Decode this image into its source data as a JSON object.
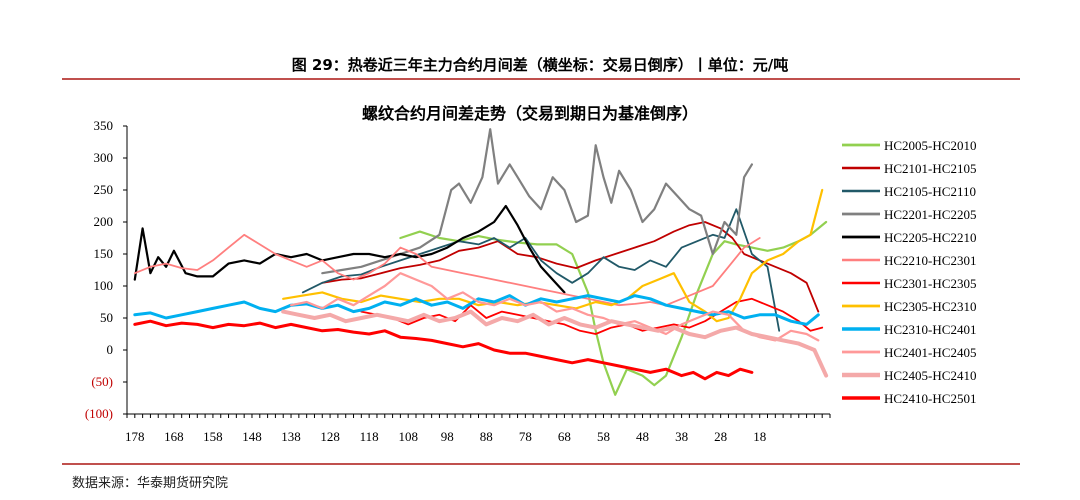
{
  "figure_title": "图 29：热卷近三年主力合约月间差（横坐标：交易日倒序）丨单位：元/吨",
  "source_note": "数据来源：华泰期货研究院",
  "chart_data": {
    "type": "line",
    "title": "螺纹合约月间差走势（交易到期日为基准倒序）",
    "xlabel": "",
    "ylabel": "",
    "ylim": [
      -100,
      350
    ],
    "yticks": [
      350,
      300,
      250,
      200,
      150,
      100,
      50,
      0,
      -50,
      -100
    ],
    "ytick_labels": [
      "350",
      "300",
      "250",
      "200",
      "150",
      "100",
      "50",
      "0",
      "(50)",
      "(100)"
    ],
    "negative_label_color": "#c00000",
    "xlim": [
      180,
      0
    ],
    "xticks": [
      178,
      168,
      158,
      148,
      138,
      128,
      118,
      108,
      98,
      88,
      78,
      68,
      58,
      48,
      38,
      28,
      18
    ],
    "grid": false,
    "legend_position": "right",
    "series": [
      {
        "name": "HC2005-HC2010",
        "color": "#92d050",
        "width": 2.2,
        "x": [
          110,
          105,
          100,
          95,
          90,
          85,
          80,
          75,
          70,
          66,
          62,
          60,
          58,
          55,
          52,
          48,
          45,
          42,
          38,
          34,
          30,
          27,
          24,
          20,
          16,
          12,
          8,
          5,
          1
        ],
        "y": [
          175,
          185,
          175,
          170,
          178,
          172,
          168,
          165,
          165,
          150,
          90,
          30,
          -20,
          -70,
          -30,
          -40,
          -55,
          -40,
          20,
          90,
          150,
          170,
          165,
          160,
          155,
          160,
          170,
          180,
          200
        ]
      },
      {
        "name": "HC2101-HC2105",
        "color": "#c00000",
        "width": 1.8,
        "x": [
          130,
          125,
          120,
          115,
          110,
          105,
          100,
          95,
          90,
          85,
          80,
          75,
          70,
          65,
          60,
          55,
          50,
          45,
          40,
          36,
          32,
          28,
          25,
          22,
          18,
          14,
          10,
          6,
          3
        ],
        "y": [
          105,
          110,
          112,
          120,
          128,
          133,
          140,
          155,
          160,
          170,
          150,
          145,
          135,
          128,
          140,
          150,
          160,
          170,
          185,
          195,
          200,
          190,
          175,
          150,
          140,
          130,
          120,
          105,
          60
        ]
      },
      {
        "name": "HC2105-HC2110",
        "color": "#215968",
        "width": 1.8,
        "x": [
          135,
          130,
          125,
          120,
          115,
          110,
          105,
          100,
          95,
          90,
          86,
          82,
          78,
          74,
          70,
          66,
          62,
          58,
          54,
          50,
          46,
          42,
          38,
          34,
          30,
          27,
          24,
          20,
          16,
          13
        ],
        "y": [
          90,
          105,
          115,
          118,
          130,
          140,
          150,
          160,
          170,
          165,
          175,
          160,
          175,
          140,
          120,
          105,
          120,
          145,
          130,
          125,
          140,
          130,
          160,
          170,
          180,
          175,
          220,
          150,
          130,
          30
        ]
      },
      {
        "name": "HC2201-HC2205",
        "color": "#808080",
        "width": 2.2,
        "x": [
          130,
          125,
          120,
          115,
          110,
          105,
          100,
          97,
          95,
          92,
          89,
          87,
          85,
          82,
          80,
          77,
          74,
          71,
          68,
          65,
          62,
          60,
          58,
          56,
          54,
          51,
          48,
          45,
          42,
          39,
          36,
          33,
          30,
          27,
          24,
          22,
          20
        ],
        "y": [
          120,
          125,
          130,
          140,
          150,
          160,
          180,
          250,
          260,
          230,
          270,
          345,
          260,
          290,
          270,
          240,
          220,
          270,
          250,
          200,
          210,
          320,
          270,
          230,
          280,
          250,
          200,
          220,
          260,
          240,
          220,
          210,
          150,
          200,
          180,
          270,
          290
        ]
      },
      {
        "name": "HC2205-HC2210",
        "color": "#000000",
        "width": 2.2,
        "x": [
          178,
          176,
          174,
          172,
          170,
          168,
          165,
          162,
          158,
          154,
          150,
          146,
          142,
          138,
          134,
          130,
          126,
          122,
          118,
          114,
          110,
          106,
          102,
          98,
          94,
          90,
          86,
          83,
          80,
          77,
          74,
          71,
          68
        ],
        "y": [
          110,
          190,
          120,
          145,
          130,
          155,
          120,
          115,
          115,
          135,
          140,
          135,
          150,
          145,
          150,
          140,
          145,
          150,
          150,
          145,
          150,
          145,
          150,
          160,
          175,
          185,
          200,
          225,
          195,
          160,
          130,
          110,
          90
        ]
      },
      {
        "name": "HC2210-HC2301",
        "color": "#ff7f7f",
        "width": 1.8,
        "x": [
          178,
          174,
          170,
          166,
          162,
          158,
          154,
          150,
          146,
          142,
          138,
          134,
          130,
          126,
          122,
          118,
          114,
          110,
          106,
          102,
          98,
          94,
          90,
          86,
          82,
          78,
          74,
          70,
          66,
          62,
          58,
          54,
          50,
          46,
          42,
          38,
          34,
          30,
          26,
          22,
          18
        ],
        "y": [
          120,
          130,
          135,
          128,
          125,
          140,
          160,
          180,
          165,
          150,
          140,
          130,
          140,
          120,
          110,
          120,
          135,
          160,
          150,
          130,
          125,
          120,
          115,
          110,
          105,
          100,
          95,
          90,
          85,
          80,
          75,
          70,
          72,
          75,
          70,
          80,
          90,
          100,
          130,
          160,
          175
        ]
      },
      {
        "name": "HC2301-HC2305",
        "color": "#ff0000",
        "width": 1.8,
        "x": [
          120,
          116,
          112,
          108,
          104,
          100,
          96,
          92,
          88,
          84,
          80,
          76,
          72,
          68,
          64,
          60,
          56,
          52,
          48,
          44,
          40,
          36,
          32,
          28,
          24,
          20,
          16,
          12,
          8,
          5,
          2
        ],
        "y": [
          60,
          55,
          50,
          40,
          50,
          55,
          45,
          70,
          50,
          60,
          55,
          50,
          45,
          40,
          30,
          25,
          35,
          40,
          30,
          35,
          40,
          35,
          45,
          60,
          75,
          80,
          70,
          60,
          45,
          30,
          35
        ]
      },
      {
        "name": "HC2305-HC2310",
        "color": "#ffc000",
        "width": 2.2,
        "x": [
          140,
          135,
          130,
          125,
          120,
          115,
          110,
          105,
          100,
          95,
          90,
          85,
          80,
          75,
          70,
          65,
          60,
          56,
          52,
          48,
          44,
          40,
          36,
          32,
          29,
          26,
          23,
          20,
          16,
          12,
          8,
          5,
          2
        ],
        "y": [
          80,
          85,
          90,
          80,
          75,
          85,
          80,
          75,
          80,
          80,
          70,
          75,
          70,
          75,
          70,
          65,
          75,
          70,
          80,
          100,
          110,
          120,
          75,
          60,
          45,
          50,
          80,
          120,
          140,
          150,
          170,
          180,
          250
        ]
      },
      {
        "name": "HC2310-HC2401",
        "color": "#00b0f0",
        "width": 3.0,
        "x": [
          178,
          174,
          170,
          166,
          162,
          158,
          154,
          150,
          146,
          142,
          138,
          134,
          130,
          126,
          122,
          118,
          114,
          110,
          106,
          102,
          98,
          94,
          90,
          86,
          82,
          78,
          74,
          70,
          66,
          62,
          58,
          54,
          50,
          46,
          42,
          38,
          34,
          30,
          26,
          22,
          18,
          14,
          10,
          6,
          3
        ],
        "y": [
          55,
          58,
          50,
          55,
          60,
          65,
          70,
          75,
          65,
          60,
          70,
          72,
          65,
          70,
          60,
          65,
          75,
          70,
          80,
          70,
          75,
          65,
          80,
          75,
          85,
          70,
          80,
          75,
          80,
          85,
          80,
          75,
          85,
          80,
          70,
          65,
          60,
          55,
          60,
          50,
          55,
          55,
          45,
          40,
          55
        ]
      },
      {
        "name": "HC2401-HC2405",
        "color": "#ff9999",
        "width": 2.2,
        "x": [
          138,
          134,
          130,
          126,
          122,
          118,
          114,
          110,
          106,
          102,
          98,
          94,
          90,
          86,
          82,
          78,
          74,
          70,
          66,
          62,
          58,
          54,
          50,
          46,
          42,
          38,
          34,
          30,
          26,
          22,
          18,
          14,
          10,
          6,
          3
        ],
        "y": [
          70,
          75,
          65,
          80,
          70,
          85,
          100,
          120,
          110,
          100,
          80,
          90,
          75,
          70,
          80,
          70,
          75,
          60,
          65,
          55,
          50,
          40,
          45,
          35,
          25,
          40,
          50,
          60,
          55,
          30,
          20,
          15,
          30,
          25,
          15
        ]
      },
      {
        "name": "HC2405-HC2410",
        "color": "#f4a9a9",
        "width": 4.0,
        "x": [
          140,
          136,
          132,
          128,
          124,
          120,
          116,
          112,
          108,
          104,
          100,
          96,
          92,
          88,
          84,
          80,
          76,
          72,
          68,
          64,
          60,
          56,
          52,
          48,
          44,
          40,
          36,
          32,
          28,
          24,
          20,
          16,
          12,
          8,
          4,
          1
        ],
        "y": [
          60,
          55,
          50,
          55,
          45,
          50,
          55,
          50,
          45,
          55,
          45,
          50,
          60,
          40,
          50,
          45,
          55,
          40,
          50,
          40,
          35,
          45,
          40,
          35,
          30,
          35,
          25,
          20,
          30,
          35,
          25,
          20,
          15,
          10,
          0,
          -40
        ]
      },
      {
        "name": "HC2410-HC2501",
        "color": "#ff0000",
        "width": 3.0,
        "x": [
          178,
          174,
          170,
          166,
          162,
          158,
          154,
          150,
          146,
          142,
          138,
          134,
          130,
          126,
          122,
          118,
          114,
          110,
          106,
          102,
          98,
          94,
          90,
          86,
          82,
          78,
          74,
          70,
          66,
          62,
          58,
          54,
          50,
          46,
          42,
          38,
          35,
          32,
          29,
          26,
          23,
          20
        ],
        "y": [
          40,
          45,
          38,
          42,
          40,
          35,
          40,
          38,
          42,
          35,
          40,
          35,
          30,
          32,
          28,
          25,
          30,
          20,
          18,
          15,
          10,
          5,
          10,
          0,
          -5,
          -5,
          -10,
          -15,
          -20,
          -15,
          -20,
          -25,
          -30,
          -35,
          -30,
          -40,
          -35,
          -45,
          -35,
          -40,
          -30,
          -35
        ]
      }
    ]
  }
}
